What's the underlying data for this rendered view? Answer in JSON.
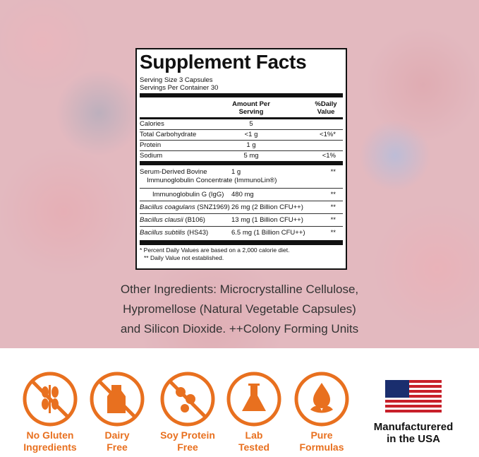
{
  "supplement_facts": {
    "title": "Supplement Facts",
    "serving_size": "Serving Size  3 Capsules",
    "servings_per_container": "Servings Per Container  30",
    "header_amount": "Amount Per Serving",
    "header_dv": "%Daily Value",
    "rows": [
      {
        "name": "Calories",
        "amount": "5"
      },
      {
        "name": "Total Carbohydrate",
        "amount": "<1 g",
        "dv": "<1%*"
      },
      {
        "name": "Protein",
        "amount": "1 g"
      },
      {
        "name": "Sodium",
        "amount": "5 mg",
        "dv": "<1%"
      }
    ],
    "ingredients": [
      {
        "name": "Serum-Derived Bovine",
        "name2": "Immunoglobulin Concentrate (ImmunoLin®)",
        "amount": "1 g",
        "dv": "**"
      },
      {
        "name": "Immunoglobulin G (IgG)",
        "amount": "480 mg",
        "dv": "**"
      },
      {
        "name": "Bacillus coagulans",
        "strain": "(SNZ1969)",
        "amount": "26 mg (2 Billion CFU++)",
        "dv": "**"
      },
      {
        "name": "Bacillus clausii",
        "strain": "(B106)",
        "amount": "13 mg (1 Billion CFU++)",
        "dv": "**"
      },
      {
        "name": "Bacillus subtilis",
        "strain": "(HS43)",
        "amount": "6.5 mg (1 Billion CFU++)",
        "dv": "**"
      }
    ],
    "footnotes": [
      "* Percent Daily Values are based on a 2,000 calorie diet.",
      "** Daily Value not established."
    ]
  },
  "other_ingredients": [
    "Other Ingredients: Microcrystalline Cellulose,",
    "Hypromellose (Natural Vegetable Capsules)",
    "and Silicon Dioxide. ++Colony Forming Units"
  ],
  "badges": [
    {
      "line1": "No Gluten",
      "line2": "Ingredients"
    },
    {
      "line1": "Dairy",
      "line2": "Free"
    },
    {
      "line1": "Soy Protein",
      "line2": "Free"
    },
    {
      "line1": "Lab",
      "line2": "Tested"
    },
    {
      "line1": "Pure",
      "line2": "Formulas"
    },
    {
      "line1": "Manufacturered",
      "line2": "in the USA"
    }
  ]
}
